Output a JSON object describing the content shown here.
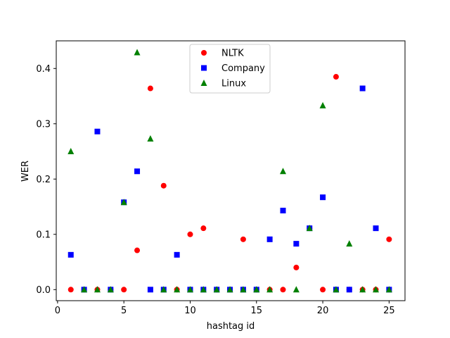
{
  "chart_data": {
    "type": "scatter",
    "title": "",
    "xlabel": "hashtag id",
    "ylabel": "WER",
    "xlim": [
      -0.1,
      26.2
    ],
    "ylim": [
      -0.02,
      0.45
    ],
    "xticks": [
      0,
      5,
      10,
      15,
      20,
      25
    ],
    "yticks": [
      0.0,
      0.1,
      0.2,
      0.3,
      0.4
    ],
    "ytick_labels": [
      "0.0",
      "0.1",
      "0.2",
      "0.3",
      "0.4"
    ],
    "grid": false,
    "legend_position": "upper center",
    "series": [
      {
        "name": "NLTK",
        "marker": "circle",
        "color": "#ff0000",
        "x": [
          1,
          2,
          3,
          4,
          5,
          6,
          7,
          8,
          9,
          10,
          11,
          12,
          13,
          14,
          15,
          16,
          17,
          18,
          19,
          20,
          21,
          22,
          23,
          24,
          25
        ],
        "y": [
          0,
          0,
          0,
          0,
          0,
          0.071,
          0.364,
          0.188,
          0,
          0.1,
          0.111,
          0,
          0,
          0.091,
          0,
          0,
          0,
          0.04,
          0.111,
          0,
          0.385,
          0,
          0,
          0,
          0.091
        ]
      },
      {
        "name": "Company",
        "marker": "square",
        "color": "#0000ff",
        "x": [
          1,
          2,
          3,
          4,
          5,
          6,
          7,
          8,
          9,
          10,
          11,
          12,
          13,
          14,
          15,
          16,
          17,
          18,
          19,
          20,
          21,
          22,
          23,
          24,
          25
        ],
        "y": [
          0.063,
          0,
          0.286,
          0,
          0.158,
          0.214,
          0,
          0,
          0.063,
          0,
          0,
          0,
          0,
          0,
          0,
          0.091,
          0.143,
          0.083,
          0.111,
          0.167,
          0,
          0,
          0.364,
          0.111,
          0
        ]
      },
      {
        "name": "Linux",
        "marker": "triangle",
        "color": "#008000",
        "x": [
          1,
          2,
          3,
          4,
          5,
          6,
          7,
          8,
          9,
          10,
          11,
          12,
          13,
          14,
          15,
          16,
          17,
          18,
          19,
          20,
          21,
          22,
          23,
          24,
          25
        ],
        "y": [
          0.25,
          0,
          0,
          0,
          0.158,
          0.429,
          0.273,
          0,
          0,
          0,
          0,
          0,
          0,
          0,
          0,
          0,
          0.214,
          0,
          0.111,
          0.333,
          0,
          0.083,
          0,
          0,
          0
        ]
      }
    ]
  }
}
